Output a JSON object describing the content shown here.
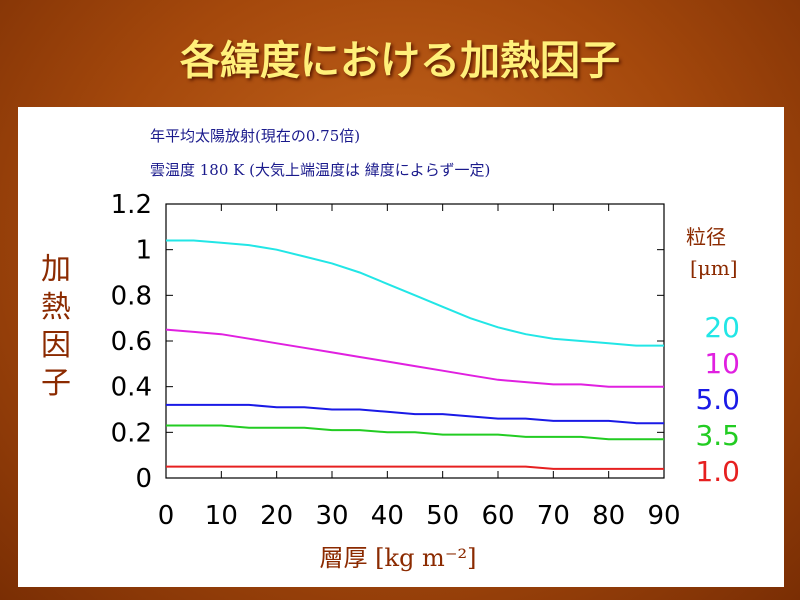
{
  "slide": {
    "title": "各緯度における加熱因子"
  },
  "chart_data": {
    "type": "line",
    "annotation_lines": [
      "年平均太陽放射(現在の0.75倍)",
      "雲温度  180 K  (大気上端温度は 緯度によらず一定)"
    ],
    "ylabel": "加熱因子",
    "xlabel": "層厚  [kg m⁻²]",
    "legend_title": "粒径",
    "legend_unit": "[μm]",
    "legend_placement": "right",
    "xlim": [
      0,
      90
    ],
    "ylim": [
      0,
      1.2
    ],
    "x_ticks": [
      "0",
      "10",
      "20",
      "30",
      "40",
      "50",
      "60",
      "70",
      "80",
      "90"
    ],
    "y_ticks": [
      "0",
      "0.2",
      "0.4",
      "0.6",
      "0.8",
      "1",
      "1.2"
    ],
    "grid": false,
    "x": [
      0,
      5,
      10,
      15,
      20,
      25,
      30,
      35,
      40,
      45,
      50,
      55,
      60,
      65,
      70,
      75,
      80,
      85,
      90
    ],
    "series": [
      {
        "name": "20",
        "color": "#22e6e6",
        "values": [
          1.04,
          1.04,
          1.03,
          1.02,
          1.0,
          0.97,
          0.94,
          0.9,
          0.85,
          0.8,
          0.75,
          0.7,
          0.66,
          0.63,
          0.61,
          0.6,
          0.59,
          0.58,
          0.58
        ]
      },
      {
        "name": "10",
        "color": "#e020e0",
        "values": [
          0.65,
          0.64,
          0.63,
          0.61,
          0.59,
          0.57,
          0.55,
          0.53,
          0.51,
          0.49,
          0.47,
          0.45,
          0.43,
          0.42,
          0.41,
          0.41,
          0.4,
          0.4,
          0.4
        ]
      },
      {
        "name": "5.0",
        "color": "#1a1ae6",
        "values": [
          0.32,
          0.32,
          0.32,
          0.32,
          0.31,
          0.31,
          0.3,
          0.3,
          0.29,
          0.28,
          0.28,
          0.27,
          0.26,
          0.26,
          0.25,
          0.25,
          0.25,
          0.24,
          0.24
        ]
      },
      {
        "name": "3.5",
        "color": "#22cc22",
        "values": [
          0.23,
          0.23,
          0.23,
          0.22,
          0.22,
          0.22,
          0.21,
          0.21,
          0.2,
          0.2,
          0.19,
          0.19,
          0.19,
          0.18,
          0.18,
          0.18,
          0.17,
          0.17,
          0.17
        ]
      },
      {
        "name": "1.0",
        "color": "#e62020",
        "values": [
          0.05,
          0.05,
          0.05,
          0.05,
          0.05,
          0.05,
          0.05,
          0.05,
          0.05,
          0.05,
          0.05,
          0.05,
          0.05,
          0.05,
          0.04,
          0.04,
          0.04,
          0.04,
          0.04
        ]
      }
    ]
  }
}
